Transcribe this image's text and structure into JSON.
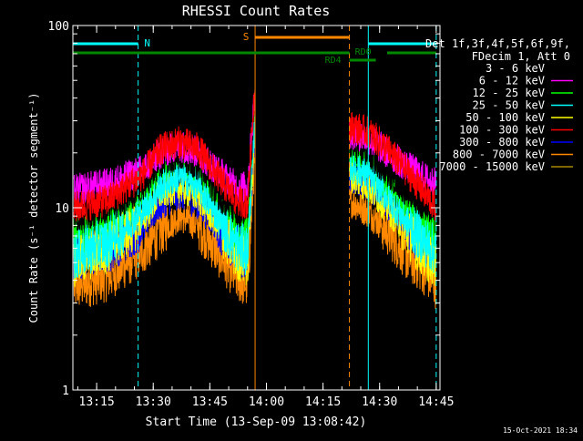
{
  "chart_data": {
    "type": "line",
    "title": "RHESSI Count Rates",
    "xlabel": "Start Time (13-Sep-09 13:08:42)",
    "ylabel": "Count Rate (s⁻¹ detector segment⁻¹)",
    "ylog": true,
    "ylim": [
      1,
      100
    ],
    "xlim": [
      "13:08:42",
      "14:46:00"
    ],
    "x_ticks": [
      "13:15",
      "13:30",
      "13:45",
      "14:00",
      "14:15",
      "14:30",
      "14:45"
    ],
    "y_ticks": [
      "1",
      "10",
      "100"
    ],
    "grid": false,
    "legend_position": "top-right",
    "legend_header": [
      "Det 1f,3f,4f,5f,6f,9f,",
      "FDecim 1, Att 0"
    ],
    "data_gap": [
      "13:57",
      "14:22"
    ],
    "series": [
      {
        "name": "3 - 6 keV",
        "color": "#000000",
        "x": [
          "13:09",
          "13:18",
          "13:27",
          "13:32",
          "13:37",
          "13:42",
          "13:47",
          "13:52",
          "13:55",
          "13:57",
          "14:22",
          "14:27",
          "14:32",
          "14:37",
          "14:42",
          "14:45"
        ],
        "y": [
          9,
          10,
          13,
          18,
          20,
          17,
          12,
          9.5,
          10,
          40,
          22,
          20,
          16,
          12.5,
          10.5,
          9.8
        ]
      },
      {
        "name": "6 - 12 keV",
        "color": "#ff00ff",
        "x": [
          "13:09",
          "13:18",
          "13:27",
          "13:32",
          "13:37",
          "13:42",
          "13:47",
          "13:52",
          "13:55",
          "13:57",
          "14:22",
          "14:27",
          "14:32",
          "14:37",
          "14:42",
          "14:45"
        ],
        "y": [
          12.5,
          13.5,
          16,
          20,
          22,
          20,
          16,
          13,
          13,
          45,
          26,
          24,
          20,
          17,
          14.5,
          13.5
        ]
      },
      {
        "name": "12 - 25 keV",
        "color": "#00ff00",
        "x": [
          "13:09",
          "13:18",
          "13:27",
          "13:32",
          "13:37",
          "13:42",
          "13:47",
          "13:52",
          "13:55",
          "13:57",
          "14:22",
          "14:27",
          "14:32",
          "14:37",
          "14:42",
          "14:45"
        ],
        "y": [
          6.5,
          7.5,
          11,
          16,
          18,
          15,
          10,
          7,
          6.5,
          35,
          20,
          17,
          13,
          10,
          7.5,
          6.5
        ]
      },
      {
        "name": "25 - 50 keV",
        "color": "#00ffff",
        "x": [
          "13:09",
          "13:18",
          "13:27",
          "13:32",
          "13:37",
          "13:42",
          "13:47",
          "13:52",
          "13:55",
          "13:57",
          "14:22",
          "14:27",
          "14:32",
          "14:37",
          "14:42",
          "14:45"
        ],
        "y": [
          5.5,
          6.5,
          9.5,
          13,
          15,
          13,
          9,
          6.2,
          5.8,
          30,
          17,
          15,
          11.5,
          8.5,
          6.5,
          5.8
        ]
      },
      {
        "name": "50 - 100 keV",
        "color": "#ffff00",
        "x": [
          "13:09",
          "13:18",
          "13:27",
          "13:32",
          "13:37",
          "13:42",
          "13:47",
          "13:52",
          "13:55",
          "13:57",
          "14:22",
          "14:27",
          "14:32",
          "14:37",
          "14:42",
          "14:45"
        ],
        "y": [
          5,
          6,
          8.5,
          12,
          13,
          11.5,
          8,
          5.5,
          5,
          28,
          15,
          13,
          10,
          7.5,
          5.5,
          5
        ]
      },
      {
        "name": "100 - 300 keV",
        "color": "#ff0000",
        "x": [
          "13:09",
          "13:18",
          "13:27",
          "13:32",
          "13:37",
          "13:42",
          "13:47",
          "13:52",
          "13:55",
          "13:57",
          "14:22",
          "14:27",
          "14:32",
          "14:37",
          "14:42",
          "14:45"
        ],
        "y": [
          10,
          11,
          15,
          21,
          23,
          21,
          15,
          11,
          10.5,
          50,
          28,
          26,
          21,
          16,
          12,
          10
        ]
      },
      {
        "name": "300 - 800 keV",
        "color": "#0000ff",
        "x": [
          "13:09",
          "13:18",
          "13:27",
          "13:32",
          "13:37",
          "13:42",
          "13:47",
          "13:52",
          "13:55",
          "13:57",
          "14:22",
          "14:27",
          "14:32",
          "14:37",
          "14:42",
          "14:45"
        ],
        "y": [
          5.5,
          6,
          8,
          10.5,
          12,
          10.5,
          8,
          6,
          5.5,
          25,
          15,
          13.5,
          10.5,
          8,
          6.5,
          5.5
        ]
      },
      {
        "name": "800 - 7000 keV",
        "color": "#ff8800",
        "x": [
          "13:09",
          "13:18",
          "13:27",
          "13:32",
          "13:37",
          "13:42",
          "13:47",
          "13:52",
          "13:55",
          "13:57",
          "14:22",
          "14:27",
          "14:32",
          "14:37",
          "14:42",
          "14:45"
        ],
        "y": [
          3.7,
          4.2,
          5.8,
          7.5,
          9,
          8,
          5.8,
          4.2,
          3.8,
          20,
          11,
          9.5,
          7.5,
          5.5,
          4.5,
          3.8
        ]
      },
      {
        "name": "7000 - 15000 keV",
        "color": "#aa8800",
        "x": [],
        "y": []
      }
    ],
    "annotations": [
      {
        "label": "N",
        "color": "#00ffff",
        "kind": "night",
        "intervals": [
          [
            "13:08:42",
            "13:26"
          ],
          [
            "14:27",
            "14:45"
          ]
        ]
      },
      {
        "label": "S",
        "color": "#ff8800",
        "kind": "saa",
        "intervals": [
          [
            "13:57",
            "14:22"
          ]
        ]
      },
      {
        "label": "RD0",
        "color": "#008800",
        "kind": "decimation",
        "intervals": [
          [
            "13:08:42",
            "14:22"
          ],
          [
            "14:32",
            "14:45"
          ]
        ]
      },
      {
        "label": "RD4",
        "color": "#008800",
        "kind": "decimation",
        "intervals": [
          [
            "14:22",
            "14:29"
          ]
        ]
      }
    ]
  },
  "footer_timestamp": "15-Oct-2021 18:34"
}
